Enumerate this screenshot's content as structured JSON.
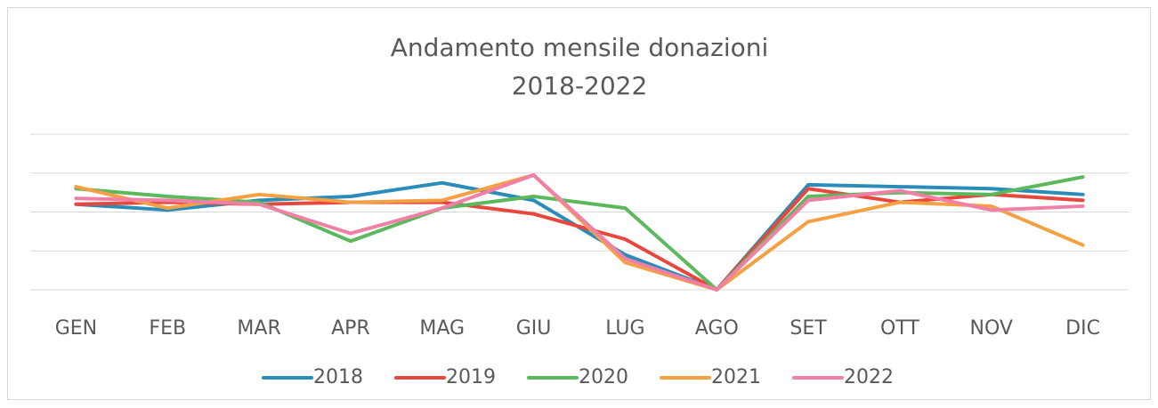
{
  "chart_data": {
    "type": "line",
    "title": [
      "Andamento mensile donazioni",
      "2018-2022"
    ],
    "categories": [
      "GEN",
      "FEB",
      "MAR",
      "APR",
      "MAG",
      "GIU",
      "LUG",
      "AGO",
      "SET",
      "OTT",
      "NOV",
      "DIC"
    ],
    "series": [
      {
        "name": "2018",
        "color": "#2a8cb8",
        "values": [
          2.2,
          2.05,
          2.3,
          2.4,
          2.75,
          2.3,
          0.9,
          0,
          2.7,
          2.65,
          2.6,
          2.45
        ]
      },
      {
        "name": "2019",
        "color": "#e8473e",
        "values": [
          2.2,
          2.25,
          2.2,
          2.25,
          2.25,
          1.95,
          1.3,
          0,
          2.6,
          2.25,
          2.45,
          2.3
        ]
      },
      {
        "name": "2020",
        "color": "#5cb85c",
        "values": [
          2.6,
          2.4,
          2.25,
          1.25,
          2.1,
          2.4,
          2.1,
          0,
          2.4,
          2.5,
          2.45,
          2.9
        ]
      },
      {
        "name": "2021",
        "color": "#f5a043",
        "values": [
          2.65,
          2.1,
          2.45,
          2.25,
          2.3,
          2.95,
          0.7,
          0,
          1.75,
          2.25,
          2.15,
          1.15
        ]
      },
      {
        "name": "2022",
        "color": "#f080a6",
        "values": [
          2.35,
          2.3,
          2.2,
          1.45,
          2.1,
          2.95,
          0.8,
          0,
          2.3,
          2.55,
          2.05,
          2.15
        ]
      }
    ],
    "ylim": [
      0,
      4
    ],
    "yticks": [
      0,
      1,
      2,
      3,
      4
    ],
    "grid": true,
    "legend": "bottom"
  }
}
